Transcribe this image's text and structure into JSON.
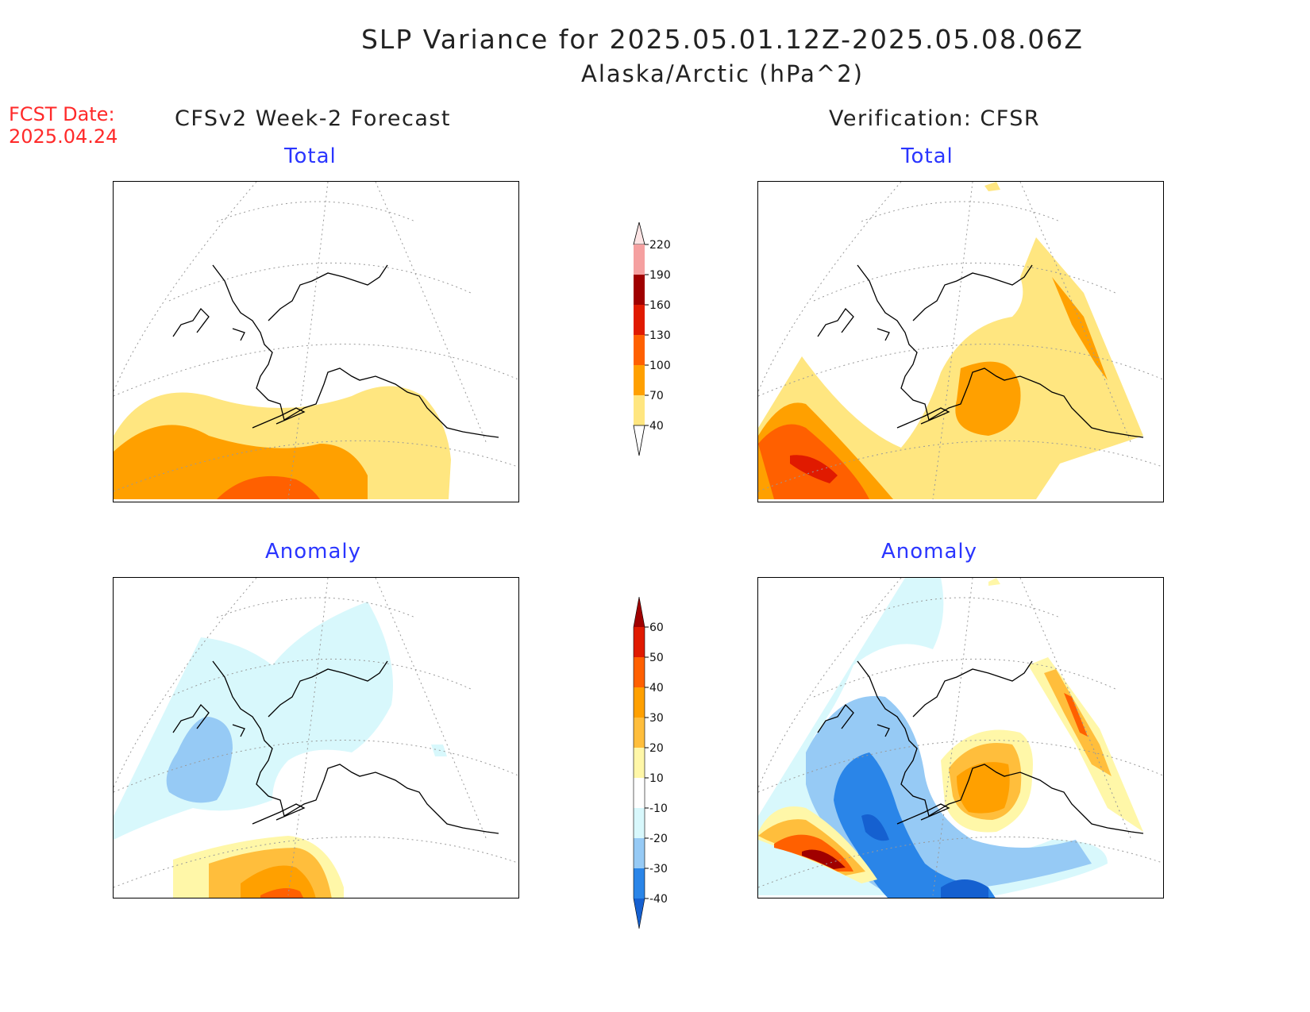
{
  "header": {
    "title": "SLP Variance for 2025.05.01.12Z-2025.05.08.06Z",
    "subtitle": "Alaska/Arctic (hPa^2)",
    "fcst_line1": "FCST Date:",
    "fcst_line2": "2025.04.24"
  },
  "columns": {
    "left": "CFSv2 Week-2 Forecast",
    "right": "Verification: CFSR"
  },
  "panels": {
    "forecast_total": "Total",
    "verification_total": "Total",
    "forecast_anomaly": "Anomaly",
    "verification_anomaly": "Anomaly"
  },
  "colorbar_total": {
    "labels": [
      "40",
      "70",
      "100",
      "130",
      "160",
      "190",
      "220"
    ],
    "colors": [
      "#ffe680",
      "#ffa000",
      "#ff6000",
      "#e01a00",
      "#a00000",
      "#f5a0a0",
      "#fde4e4"
    ]
  },
  "colorbar_anomaly": {
    "labels": [
      "-40",
      "-30",
      "-20",
      "-10",
      "10",
      "20",
      "30",
      "40",
      "50",
      "60"
    ],
    "colors": [
      "#1560d0",
      "#2a85e8",
      "#96caf5",
      "#d8f8fc",
      "#ffffff",
      "#fff7a8",
      "#ffbe3c",
      "#ffa000",
      "#ff6000",
      "#e01a00",
      "#a00000"
    ]
  }
}
